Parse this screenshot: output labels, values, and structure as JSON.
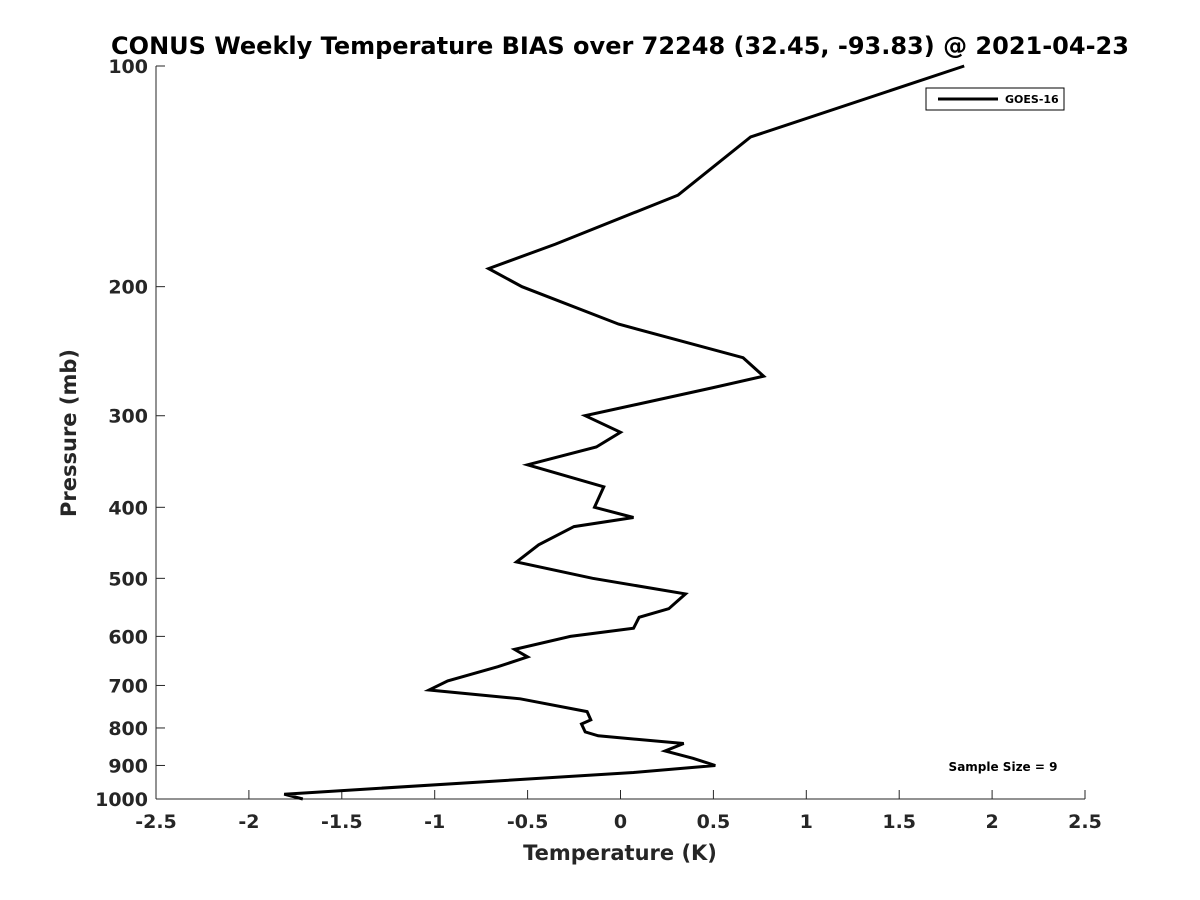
{
  "chart_data": {
    "type": "line",
    "title": "CONUS Weekly Temperature BIAS over 72248 (32.45, -93.83) @ 2021-04-23",
    "xlabel": "Temperature (K)",
    "ylabel": "Pressure (mb)",
    "xlim": [
      -2.5,
      2.5
    ],
    "ylim": [
      100,
      1000
    ],
    "yscale": "log",
    "y_reversed": true,
    "x_ticks": [
      -2.5,
      -2,
      -1.5,
      -1,
      -0.5,
      0,
      0.5,
      1,
      1.5,
      2,
      2.5
    ],
    "x_tick_labels": [
      "-2.5",
      "-2",
      "-1.5",
      "-1",
      "-0.5",
      "0",
      "0.5",
      "1",
      "1.5",
      "2",
      "2.5"
    ],
    "y_ticks": [
      100,
      200,
      300,
      400,
      500,
      600,
      700,
      800,
      900,
      1000
    ],
    "y_tick_labels": [
      "100",
      "200",
      "300",
      "400",
      "500",
      "600",
      "700",
      "800",
      "900",
      "1000"
    ],
    "grid": false,
    "legend_position": "top-right",
    "annotation": "Sample Size = 9",
    "series": [
      {
        "name": "GOES-16",
        "color": "#000000",
        "points": [
          {
            "x": 1.85,
            "y": 100
          },
          {
            "x": 0.7,
            "y": 125
          },
          {
            "x": 0.31,
            "y": 150
          },
          {
            "x": -0.35,
            "y": 175
          },
          {
            "x": -0.71,
            "y": 189
          },
          {
            "x": -0.53,
            "y": 200
          },
          {
            "x": -0.01,
            "y": 225
          },
          {
            "x": 0.66,
            "y": 250
          },
          {
            "x": 0.77,
            "y": 265
          },
          {
            "x": 0.49,
            "y": 275
          },
          {
            "x": -0.19,
            "y": 300
          },
          {
            "x": 0.0,
            "y": 316
          },
          {
            "x": -0.13,
            "y": 331
          },
          {
            "x": -0.5,
            "y": 350
          },
          {
            "x": -0.09,
            "y": 375
          },
          {
            "x": -0.14,
            "y": 400
          },
          {
            "x": 0.07,
            "y": 413
          },
          {
            "x": -0.25,
            "y": 425
          },
          {
            "x": -0.44,
            "y": 450
          },
          {
            "x": -0.56,
            "y": 475
          },
          {
            "x": -0.15,
            "y": 500
          },
          {
            "x": 0.35,
            "y": 525
          },
          {
            "x": 0.26,
            "y": 550
          },
          {
            "x": 0.1,
            "y": 565
          },
          {
            "x": 0.07,
            "y": 585
          },
          {
            "x": -0.27,
            "y": 600
          },
          {
            "x": -0.57,
            "y": 625
          },
          {
            "x": -0.5,
            "y": 640
          },
          {
            "x": -0.66,
            "y": 660
          },
          {
            "x": -0.93,
            "y": 690
          },
          {
            "x": -1.03,
            "y": 710
          },
          {
            "x": -0.54,
            "y": 730
          },
          {
            "x": -0.18,
            "y": 760
          },
          {
            "x": -0.16,
            "y": 780
          },
          {
            "x": -0.21,
            "y": 790
          },
          {
            "x": -0.19,
            "y": 810
          },
          {
            "x": -0.12,
            "y": 820
          },
          {
            "x": 0.34,
            "y": 840
          },
          {
            "x": 0.24,
            "y": 860
          },
          {
            "x": 0.39,
            "y": 880
          },
          {
            "x": 0.51,
            "y": 900
          },
          {
            "x": 0.07,
            "y": 920
          },
          {
            "x": -1.81,
            "y": 985
          },
          {
            "x": -1.71,
            "y": 1000
          }
        ]
      }
    ]
  }
}
